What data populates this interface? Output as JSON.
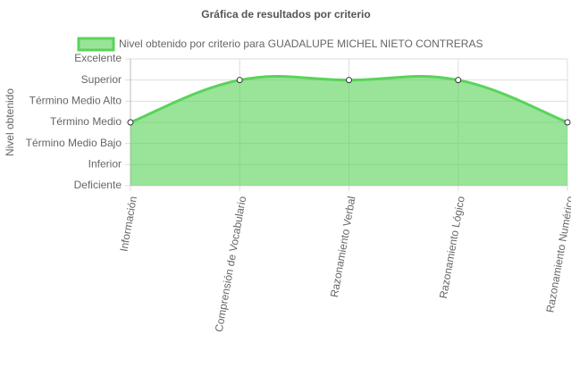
{
  "chart_data": {
    "type": "line",
    "title": "Gráfica de resultados por criterio",
    "y_label": "Nivel obtenido",
    "categories": [
      "Información",
      "Comprensión de Vocabulario",
      "Razonamiento Verbal",
      "Razonamiento Lógico",
      "Razonamiento Numérico"
    ],
    "series": [
      {
        "name": "Nivel obtenido por criterio para GUADALUPE MICHEL NIETO CONTRERAS",
        "color": "#5ad35a",
        "values": [
          3,
          5,
          5,
          5,
          3
        ]
      }
    ],
    "ylim": [
      0,
      6
    ],
    "yticks": [
      {
        "value": 0,
        "label": "Deficiente"
      },
      {
        "value": 1,
        "label": "Inferior"
      },
      {
        "value": 2,
        "label": "Término Medio Bajo"
      },
      {
        "value": 3,
        "label": "Término Medio"
      },
      {
        "value": 4,
        "label": "Término Medio Alto"
      },
      {
        "value": 5,
        "label": "Superior"
      },
      {
        "value": 6,
        "label": "Excelente"
      }
    ],
    "grid": true,
    "fill": true
  }
}
